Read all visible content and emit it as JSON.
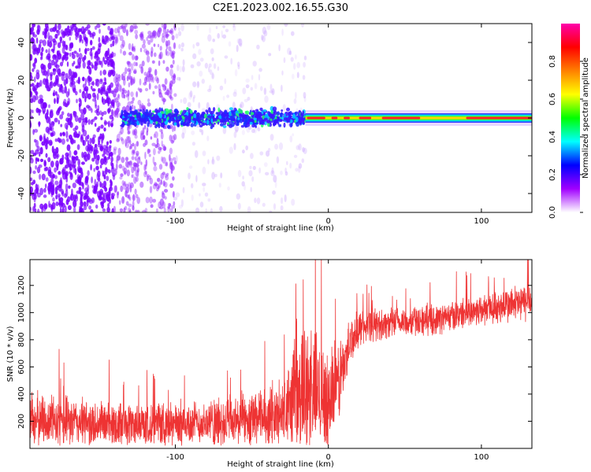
{
  "title": "C2E1.2023.002.16.55.G30",
  "chart_data": [
    {
      "type": "heatmap",
      "xlabel": "Height of straight line (km)",
      "ylabel": "Frequency (Hz)",
      "xlim": [
        -195,
        133
      ],
      "ylim": [
        -50,
        50
      ],
      "x_ticks": [
        -100,
        0,
        100
      ],
      "x_tick_labels": [
        "-100",
        "0",
        "100"
      ],
      "y_ticks": [
        -40,
        -20,
        0,
        20,
        40
      ],
      "y_tick_labels": [
        "-40",
        "-20",
        "0",
        "20",
        "40"
      ],
      "grid": false,
      "colorbar": {
        "label": "Normalized spectral amplitude",
        "range": [
          0,
          1
        ],
        "ticks": [
          0.0,
          0.2,
          0.4,
          0.6,
          0.8
        ],
        "tick_labels": [
          "0.0",
          "0.2",
          "0.4",
          "0.6",
          "0.8"
        ],
        "colors": [
          "#ffffff",
          "#a100ff",
          "#0000ff",
          "#00ffff",
          "#00ff00",
          "#ffff00",
          "#ff8000",
          "#ff0000",
          "#ff00aa"
        ]
      },
      "bands": [
        {
          "x": [
            -195,
            -140
          ],
          "freq_spread": 50,
          "density": "high",
          "intensity": 0.2,
          "color": "#7a00ff"
        },
        {
          "x": [
            -140,
            -100
          ],
          "freq_spread": 50,
          "density": "medium",
          "intensity": 0.15,
          "color": "#9a33ff"
        },
        {
          "x": [
            -100,
            -15
          ],
          "freq_spread": 50,
          "density": "low",
          "intensity": 0.08,
          "color": "#c9a3ff"
        },
        {
          "x": [
            -135,
            -15
          ],
          "freq_spread": 6,
          "density": "strong",
          "intensity": 0.45,
          "color": "#3c1bff"
        },
        {
          "x": [
            -15,
            133
          ],
          "freq_spread": 3,
          "density": "line",
          "intensity": 0.95,
          "color": "#ff2b2b"
        }
      ]
    },
    {
      "type": "line",
      "xlabel": "Height of straight line (km)",
      "ylabel": "SNR (10 * v/v)",
      "xlim": [
        -195,
        133
      ],
      "ylim": [
        0,
        1390
      ],
      "x_ticks": [
        -100,
        0,
        100
      ],
      "x_tick_labels": [
        "-100",
        "0",
        "100"
      ],
      "y_ticks": [
        200,
        400,
        600,
        800,
        1000,
        1200
      ],
      "y_tick_labels": [
        "200",
        "400",
        "600",
        "800",
        "1000",
        "1200"
      ],
      "grid": false,
      "series": [
        {
          "color": "#ee3333",
          "x": [
            -195,
            -180,
            -160,
            -140,
            -120,
            -100,
            -80,
            -60,
            -40,
            -30,
            -20,
            -15,
            -10,
            -5,
            0,
            5,
            10,
            15,
            20,
            30,
            40,
            50,
            60,
            70,
            80,
            90,
            100,
            110,
            120,
            133
          ],
          "y": [
            220,
            200,
            190,
            180,
            175,
            180,
            185,
            200,
            230,
            250,
            400,
            450,
            430,
            420,
            350,
            450,
            600,
            800,
            890,
            910,
            920,
            930,
            940,
            950,
            970,
            1000,
            1020,
            1040,
            1060,
            1080
          ],
          "noise_amp": [
            230,
            220,
            200,
            190,
            180,
            190,
            200,
            220,
            250,
            300,
            500,
            550,
            520,
            500,
            450,
            400,
            280,
            200,
            150,
            140,
            130,
            130,
            130,
            130,
            130,
            130,
            140,
            150,
            160,
            170
          ]
        }
      ]
    }
  ]
}
